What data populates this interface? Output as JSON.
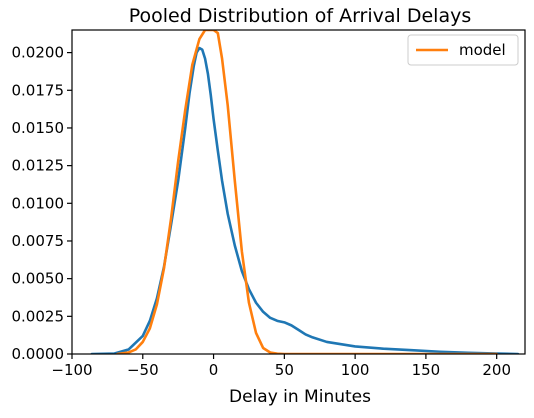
{
  "chart_data": {
    "type": "line",
    "title": "Pooled Distribution of Arrival Delays",
    "xlabel": "Delay in Minutes",
    "ylabel": "",
    "xlim": [
      -100,
      220
    ],
    "ylim": [
      0,
      0.0215
    ],
    "grid": false,
    "legend_position": "top-right",
    "x_ticks": [
      -100,
      -50,
      0,
      50,
      100,
      150,
      200
    ],
    "x_tick_labels": [
      "−100",
      "−50",
      "0",
      "50",
      "100",
      "150",
      "200"
    ],
    "y_ticks": [
      0,
      0.0025,
      0.005,
      0.0075,
      0.01,
      0.0125,
      0.015,
      0.0175,
      0.02
    ],
    "y_tick_labels": [
      "0.0000",
      "0.0025",
      "0.0050",
      "0.0075",
      "0.0100",
      "0.0125",
      "0.0150",
      "0.0175",
      "0.0200"
    ],
    "colors": {
      "empirical": "#1f77b4",
      "model": "#ff7f0e"
    },
    "series": [
      {
        "x": [
          -86,
          -70,
          -60,
          -50,
          -45,
          -40,
          -35,
          -30,
          -25,
          -20,
          -17,
          -14,
          -12,
          -10,
          -8,
          -6,
          -4,
          -2,
          0,
          3,
          6,
          10,
          15,
          20,
          25,
          30,
          35,
          40,
          45,
          50,
          55,
          60,
          65,
          70,
          80,
          90,
          100,
          120,
          140,
          160,
          180,
          200,
          215
        ],
        "y": [
          0.0,
          3e-05,
          0.0003,
          0.0012,
          0.0022,
          0.0037,
          0.0058,
          0.0086,
          0.0115,
          0.015,
          0.0173,
          0.0191,
          0.02,
          0.0203,
          0.0202,
          0.0196,
          0.0186,
          0.0172,
          0.0156,
          0.0135,
          0.0115,
          0.0093,
          0.0072,
          0.0055,
          0.0043,
          0.0034,
          0.0028,
          0.0024,
          0.0022,
          0.0021,
          0.0019,
          0.0016,
          0.0013,
          0.0011,
          0.0008,
          0.00065,
          0.0005,
          0.00035,
          0.00025,
          0.00015,
          8e-05,
          3e-05,
          0.0
        ]
      },
      {
        "name": "model",
        "x": [
          -68,
          -60,
          -55,
          -50,
          -45,
          -40,
          -35,
          -30,
          -25,
          -20,
          -15,
          -10,
          -6,
          -3,
          0,
          3,
          6,
          10,
          15,
          20,
          25,
          30,
          35,
          40,
          45,
          50,
          60,
          80,
          100,
          150,
          200
        ],
        "y": [
          0.0,
          0.0001,
          0.0003,
          0.0008,
          0.0017,
          0.0033,
          0.0057,
          0.009,
          0.0128,
          0.0162,
          0.0192,
          0.0209,
          0.0215,
          0.0215,
          0.0215,
          0.0213,
          0.0196,
          0.0165,
          0.0115,
          0.0068,
          0.0034,
          0.0014,
          0.0004,
          0.0001,
          2e-05,
          0.0,
          0.0,
          0.0,
          0.0,
          0.0,
          0.0
        ]
      }
    ]
  }
}
